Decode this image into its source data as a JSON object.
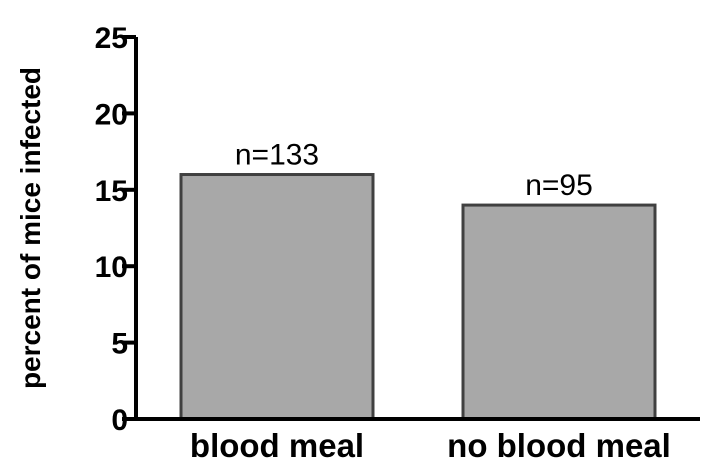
{
  "chart_data": {
    "type": "bar",
    "categories": [
      "blood meal",
      "no blood meal"
    ],
    "values": [
      16,
      14
    ],
    "data_labels": [
      "n=133",
      "n=95"
    ],
    "title": "",
    "xlabel": "",
    "ylabel": "percent of mice infected",
    "ylim": [
      0,
      25
    ],
    "yticks": [
      "0",
      "5",
      "10",
      "15",
      "20",
      "25"
    ],
    "grid": false,
    "bar_color": "#a8a8a8",
    "bar_edge_color": "#404040"
  }
}
